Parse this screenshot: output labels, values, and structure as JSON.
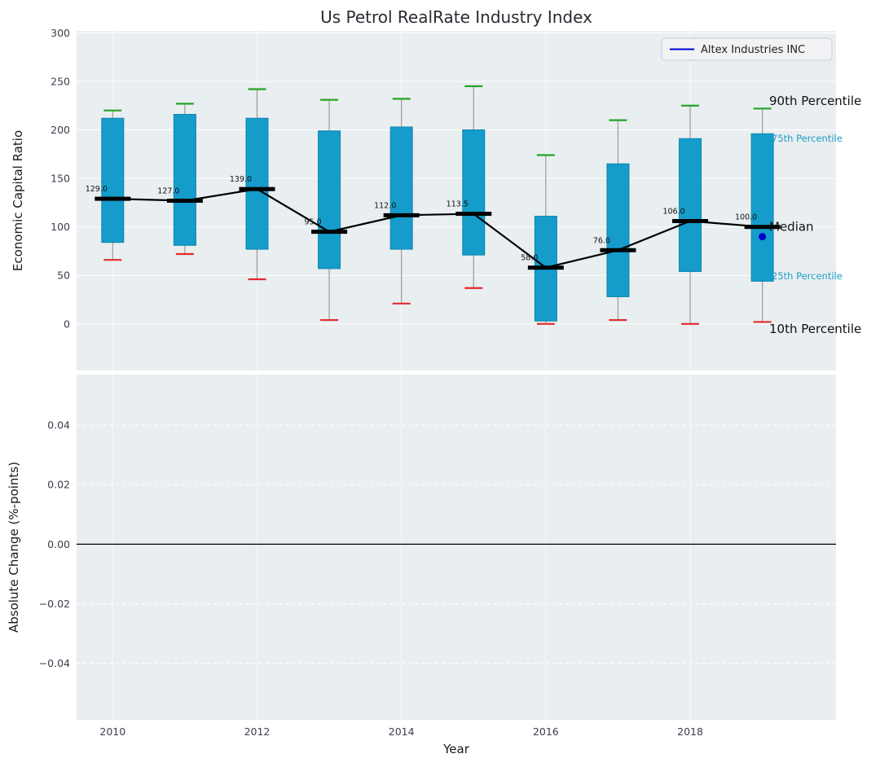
{
  "style": {
    "panel_bg": "#e9eef0",
    "box": "#159ccb",
    "box_edge": "#0e86ae",
    "whisker": "#9a9a9a",
    "p90_cap": "#26a326",
    "p10_cap": "#e42a2a",
    "median": "#000000",
    "tick": "#3d3d4d",
    "title": "#2b2b33",
    "legend_bg": "#f0f2f4",
    "legend_border": "#c8cdd3",
    "accent_line": "#0000cc"
  },
  "chart_data": [
    {
      "type": "boxplot",
      "title": "Us Petrol RealRate Industry Index",
      "ylabel": "Economic Capital Ratio",
      "xlim": [
        2009.5,
        2020.02
      ],
      "ylim": [
        -48,
        302
      ],
      "yticks": [
        0,
        50,
        100,
        150,
        200,
        250,
        300
      ],
      "yticklabels": [
        "0",
        "50",
        "100",
        "150",
        "200",
        "250",
        "300"
      ],
      "grid": true,
      "legend": {
        "label": "Altex Industries INC",
        "color": "#0000cc",
        "position": "upper right"
      },
      "boxes": [
        {
          "year": 2010,
          "p10": 66,
          "q1": 84,
          "median": 129,
          "q3": 212,
          "p90": 220,
          "label": "129.0"
        },
        {
          "year": 2011,
          "p10": 72,
          "q1": 81,
          "median": 127,
          "q3": 216,
          "p90": 227,
          "label": "127.0"
        },
        {
          "year": 2012,
          "p10": 46,
          "q1": 77,
          "median": 139,
          "q3": 212,
          "p90": 242,
          "label": "139.0"
        },
        {
          "year": 2013,
          "p10": 4,
          "q1": 57,
          "median": 95,
          "q3": 199,
          "p90": 231,
          "label": "95.0"
        },
        {
          "year": 2014,
          "p10": 21,
          "q1": 77,
          "median": 112,
          "q3": 203,
          "p90": 232,
          "label": "112.0"
        },
        {
          "year": 2015,
          "p10": 37,
          "q1": 71,
          "median": 113.5,
          "q3": 200,
          "p90": 245,
          "label": "113.5"
        },
        {
          "year": 2016,
          "p10": 0,
          "q1": 3,
          "median": 58,
          "q3": 111,
          "p90": 174,
          "label": "58.0"
        },
        {
          "year": 2017,
          "p10": 4,
          "q1": 28,
          "median": 76,
          "q3": 165,
          "p90": 210,
          "label": "76.0"
        },
        {
          "year": 2018,
          "p10": 0,
          "q1": 54,
          "median": 106,
          "q3": 191,
          "p90": 225,
          "label": "106.0"
        },
        {
          "year": 2019,
          "p10": 2,
          "q1": 44,
          "median": 100,
          "q3": 196,
          "p90": 222,
          "label": "100.0"
        }
      ],
      "company_point": {
        "year": 2019,
        "value": 90,
        "color": "#0000cc"
      },
      "annotations": [
        {
          "key": "90th-percentile",
          "text": "90th Percentile",
          "value": 230,
          "color": "#111111",
          "size": 15
        },
        {
          "key": "75th-percentile",
          "text": "75th Percentile",
          "value": 192,
          "color": "#1b9ec7",
          "size": 11.5
        },
        {
          "key": "median",
          "text": "Median",
          "value": 100,
          "color": "#111111",
          "size": 15
        },
        {
          "key": "25th-percentile",
          "text": "25th Percentile",
          "value": 50,
          "color": "#1b9ec7",
          "size": 11.5
        },
        {
          "key": "10th-percentile",
          "text": "10th Percentile",
          "value": -5,
          "color": "#111111",
          "size": 15
        }
      ]
    },
    {
      "type": "line",
      "ylabel": "Absolute Change (%-points)",
      "xlabel": "Year",
      "ylim": [
        -0.059,
        0.057
      ],
      "yticks": [
        -0.04,
        -0.02,
        0,
        0.02,
        0.04
      ],
      "yticklabels": [
        "−0.04",
        "−0.02",
        "0.00",
        "0.02",
        "0.04"
      ],
      "xticks": [
        2010,
        2012,
        2014,
        2016,
        2018
      ],
      "xticklabels": [
        "2010",
        "2012",
        "2014",
        "2016",
        "2018"
      ],
      "zero_line": 0.0,
      "grid": true,
      "series": []
    }
  ]
}
